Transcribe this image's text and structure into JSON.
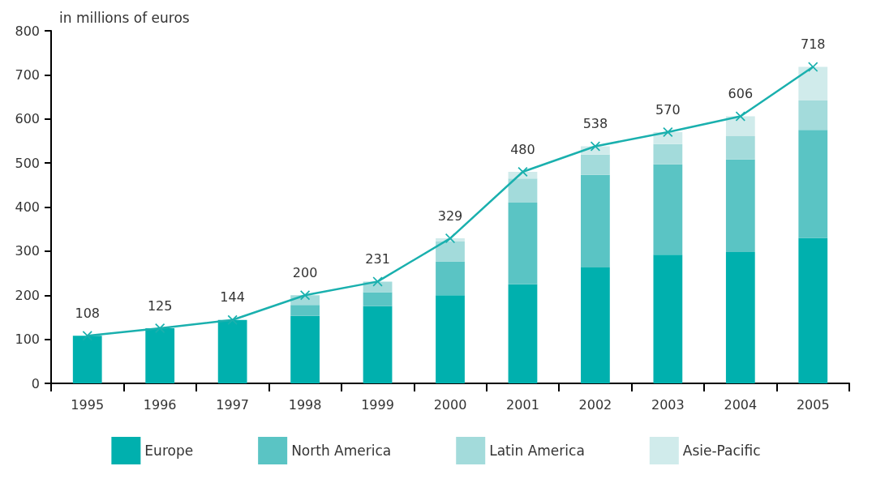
{
  "chart_data": {
    "type": "bar",
    "stacked": true,
    "ylabel": "in millions of euros",
    "categories": [
      "1995",
      "1996",
      "1997",
      "1998",
      "1999",
      "2000",
      "2001",
      "2002",
      "2003",
      "2004",
      "2005"
    ],
    "series": [
      {
        "name": "Europe",
        "color": "#00b0ae",
        "values": [
          108,
          125,
          144,
          153,
          175,
          200,
          225,
          263,
          292,
          298,
          330
        ]
      },
      {
        "name": "North America",
        "color": "#5ac4c4",
        "values": [
          0,
          0,
          0,
          25,
          32,
          77,
          185,
          210,
          205,
          210,
          245
        ]
      },
      {
        "name": "Latin America",
        "color": "#a3dbdb",
        "values": [
          0,
          0,
          0,
          22,
          24,
          45,
          55,
          46,
          46,
          53,
          67
        ]
      },
      {
        "name": "Asie-Pacific",
        "color": "#d0ebeb",
        "values": [
          0,
          0,
          0,
          0,
          0,
          7,
          15,
          19,
          27,
          45,
          76
        ]
      },
      {
        "type": "line",
        "color": "#1ab0ae",
        "marker": "cross",
        "data_labels": true,
        "values": [
          108,
          125,
          144,
          200,
          231,
          329,
          480,
          538,
          570,
          606,
          718
        ]
      }
    ],
    "ylim": [
      0,
      800
    ],
    "yticks": [
      0,
      100,
      200,
      300,
      400,
      500,
      600,
      700,
      800
    ],
    "grid": false,
    "legend": "bottom"
  }
}
